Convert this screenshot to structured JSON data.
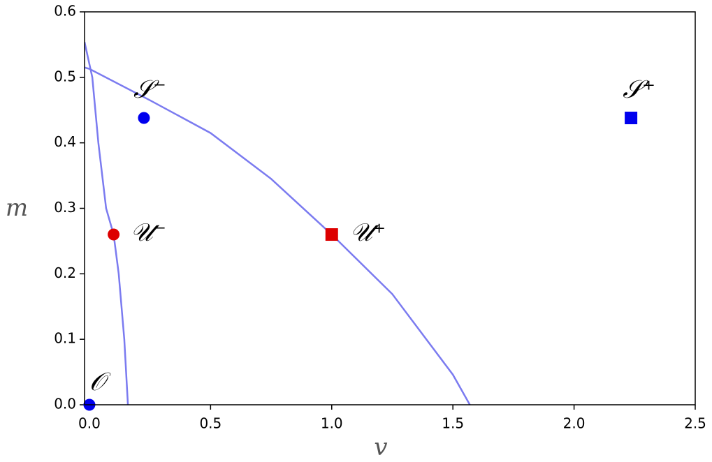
{
  "chart_data": {
    "type": "line",
    "xlabel": "v",
    "ylabel": "m",
    "xlim": [
      -0.02,
      2.5
    ],
    "ylim": [
      0,
      0.6
    ],
    "xticks": [
      {
        "value": 0,
        "label": "0.0"
      },
      0.5,
      {
        "value": 1,
        "label": "1.0"
      },
      1.5,
      {
        "value": 2,
        "label": "2.0"
      },
      2.5
    ],
    "yticks": [
      {
        "value": 0,
        "label": "0.0"
      },
      0.1,
      0.2,
      0.3,
      0.4,
      0.5,
      0.6
    ],
    "series": [
      {
        "color": "#7b7bf0",
        "x": [
          -0.02,
          0.012,
          0.037,
          0.069,
          0.1,
          0.121,
          0.144,
          0.159
        ],
        "values": [
          0.554,
          0.5,
          0.4,
          0.3,
          0.26,
          0.2,
          0.1,
          0
        ]
      },
      {
        "color": "#7b7bf0",
        "x": [
          -0.02,
          0,
          0.25,
          0.5,
          0.75,
          1.0,
          1.25,
          1.5,
          1.57
        ],
        "values": [
          0.515,
          0.513,
          0.465,
          0.415,
          0.345,
          0.26,
          0.169,
          0.046,
          0
        ]
      }
    ],
    "points": [
      {
        "label": "𝒪",
        "x": 0,
        "y": 0,
        "color": "#0000ee",
        "marker": "circle"
      },
      {
        "label": "𝒮⁻",
        "x": 0.225,
        "y": 0.438,
        "color": "#0000ee",
        "marker": "circle"
      },
      {
        "label": "𝒰⁻",
        "x": 0.1,
        "y": 0.26,
        "color": "#dd0000",
        "marker": "circle"
      },
      {
        "label": "𝒰⁺",
        "x": 1.0,
        "y": 0.26,
        "color": "#dd0000",
        "marker": "square"
      },
      {
        "label": "𝒮⁺",
        "x": 2.235,
        "y": 0.438,
        "color": "#0000ee",
        "marker": "square"
      }
    ]
  }
}
